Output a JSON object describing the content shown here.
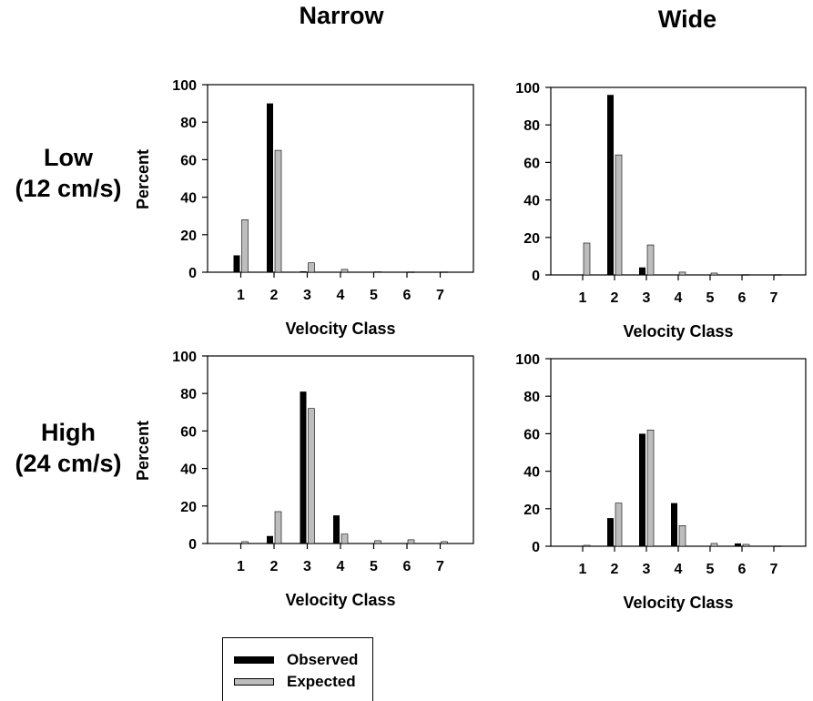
{
  "column_titles": [
    "Narrow",
    "Wide"
  ],
  "row_titles": [
    {
      "line1": "Low",
      "line2": "(12 cm/s)"
    },
    {
      "line1": "High",
      "line2": "(24 cm/s)"
    }
  ],
  "legend": [
    {
      "label": "Observed",
      "color": "#000000"
    },
    {
      "label": "Expected",
      "color": "#bdbdbd"
    }
  ],
  "colors": {
    "observed": "#000000",
    "expected": "#bdbdbd"
  },
  "chart_data": [
    {
      "type": "bar",
      "panel": "Low Narrow",
      "categories": [
        "1",
        "2",
        "3",
        "4",
        "5",
        "6",
        "7"
      ],
      "xlabel": "Velocity Class",
      "ylabel": "Percent",
      "ylim": [
        0,
        100
      ],
      "yticks": [
        0,
        20,
        40,
        60,
        80,
        100
      ],
      "series": [
        {
          "name": "Observed",
          "values": [
            9,
            90,
            0.5,
            0,
            0,
            0,
            0
          ]
        },
        {
          "name": "Expected",
          "values": [
            28,
            65,
            5,
            1.5,
            0.3,
            0.2,
            0.2
          ]
        }
      ]
    },
    {
      "type": "bar",
      "panel": "Low Wide",
      "categories": [
        "1",
        "2",
        "3",
        "4",
        "5",
        "6",
        "7"
      ],
      "xlabel": "Velocity Class",
      "ylabel": "",
      "ylim": [
        0,
        100
      ],
      "yticks": [
        0,
        20,
        40,
        60,
        80,
        100
      ],
      "series": [
        {
          "name": "Observed",
          "values": [
            0,
            96,
            4,
            0,
            0,
            0,
            0
          ]
        },
        {
          "name": "Expected",
          "values": [
            17,
            64,
            16,
            1.5,
            1,
            0.2,
            0.2
          ]
        }
      ]
    },
    {
      "type": "bar",
      "panel": "High Narrow",
      "categories": [
        "1",
        "2",
        "3",
        "4",
        "5",
        "6",
        "7"
      ],
      "xlabel": "Velocity Class",
      "ylabel": "Percent",
      "ylim": [
        0,
        100
      ],
      "yticks": [
        0,
        20,
        40,
        60,
        80,
        100
      ],
      "series": [
        {
          "name": "Observed",
          "values": [
            0,
            4,
            81,
            15,
            0,
            0,
            0
          ]
        },
        {
          "name": "Expected",
          "values": [
            1,
            17,
            72,
            5,
            1.5,
            2,
            1
          ]
        }
      ]
    },
    {
      "type": "bar",
      "panel": "High Wide",
      "categories": [
        "1",
        "2",
        "3",
        "4",
        "5",
        "6",
        "7"
      ],
      "xlabel": "Velocity Class",
      "ylabel": "",
      "ylim": [
        0,
        100
      ],
      "yticks": [
        0,
        20,
        40,
        60,
        80,
        100
      ],
      "series": [
        {
          "name": "Observed",
          "values": [
            0,
            15,
            60,
            23,
            0,
            1.5,
            0
          ]
        },
        {
          "name": "Expected",
          "values": [
            0.5,
            23,
            62,
            11,
            1.5,
            1,
            0.2
          ]
        }
      ]
    }
  ]
}
